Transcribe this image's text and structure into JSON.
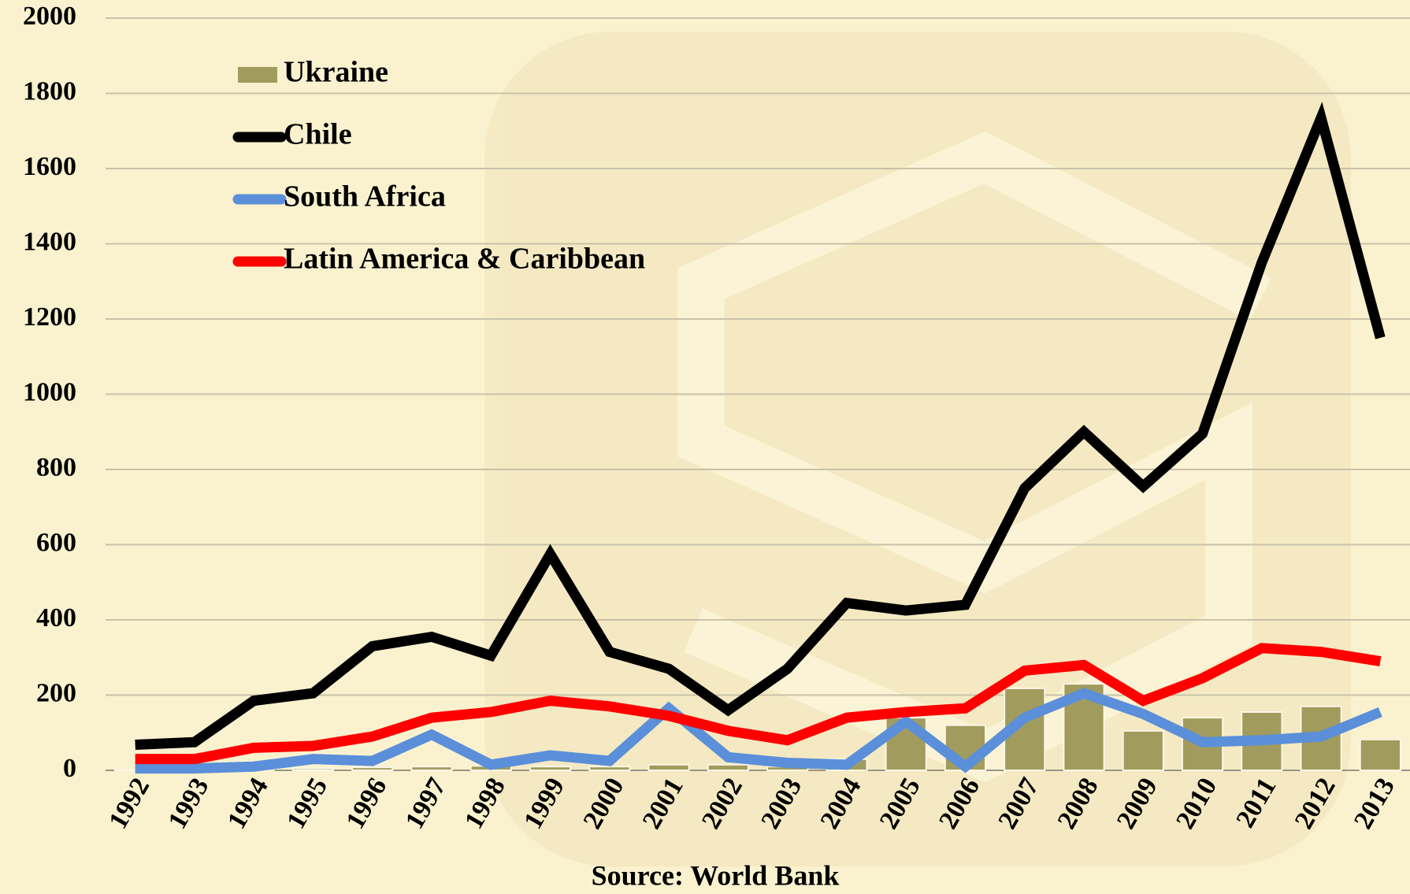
{
  "chart_data": {
    "type": "combo",
    "source": "Source: World Bank",
    "categories": [
      "1992",
      "1993",
      "1994",
      "1995",
      "1996",
      "1997",
      "1998",
      "1999",
      "2000",
      "2001",
      "2002",
      "2003",
      "2004",
      "2005",
      "2006",
      "2007",
      "2008",
      "2009",
      "2010",
      "2011",
      "2012",
      "2013"
    ],
    "series": [
      {
        "name": "Ukraine",
        "type": "bar",
        "color": "#a19b5e",
        "values": [
          1,
          2,
          3,
          5,
          8,
          10,
          12,
          10,
          10,
          15,
          15,
          10,
          30,
          140,
          120,
          218,
          230,
          105,
          140,
          155,
          170,
          82
        ]
      },
      {
        "name": "Chile",
        "type": "line",
        "color": "#000000",
        "values": [
          68,
          75,
          185,
          205,
          330,
          355,
          305,
          575,
          315,
          270,
          160,
          270,
          445,
          425,
          440,
          750,
          900,
          755,
          895,
          1350,
          1735,
          1150
        ]
      },
      {
        "name": "South Africa",
        "type": "line",
        "color": "#5b8fd9",
        "values": [
          5,
          5,
          10,
          30,
          25,
          95,
          15,
          40,
          25,
          165,
          35,
          20,
          15,
          130,
          10,
          140,
          205,
          150,
          75,
          80,
          90,
          155
        ]
      },
      {
        "name": "Latin America & Caribbean",
        "type": "line",
        "color": "#ff0000",
        "values": [
          30,
          30,
          60,
          65,
          90,
          140,
          155,
          185,
          170,
          145,
          105,
          80,
          140,
          155,
          165,
          265,
          280,
          185,
          245,
          325,
          315,
          290
        ]
      }
    ],
    "ylim": [
      0,
      2000
    ],
    "yticks": [
      0,
      200,
      400,
      600,
      800,
      1000,
      1200,
      1400,
      1600,
      1800,
      2000
    ],
    "grid": true,
    "legend": "upper left"
  }
}
